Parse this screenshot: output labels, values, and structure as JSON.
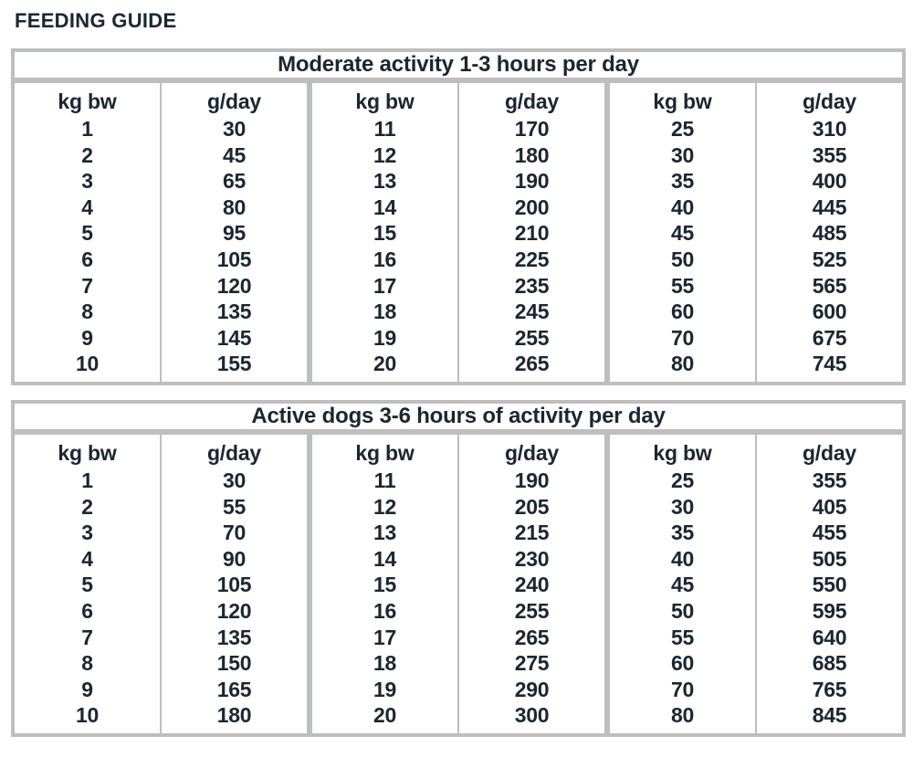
{
  "page_title": "FEEDING GUIDE",
  "colors": {
    "text": "#1c2630",
    "border": "#bdbec0"
  },
  "tables": [
    {
      "title": "Moderate activity 1-3 hours per day",
      "column_headers": {
        "weight": "kg bw",
        "amount": "g/day"
      },
      "groups": [
        {
          "rows": [
            [
              "1",
              "30"
            ],
            [
              "2",
              "45"
            ],
            [
              "3",
              "65"
            ],
            [
              "4",
              "80"
            ],
            [
              "5",
              "95"
            ],
            [
              "6",
              "105"
            ],
            [
              "7",
              "120"
            ],
            [
              "8",
              "135"
            ],
            [
              "9",
              "145"
            ],
            [
              "10",
              "155"
            ]
          ]
        },
        {
          "rows": [
            [
              "11",
              "170"
            ],
            [
              "12",
              "180"
            ],
            [
              "13",
              "190"
            ],
            [
              "14",
              "200"
            ],
            [
              "15",
              "210"
            ],
            [
              "16",
              "225"
            ],
            [
              "17",
              "235"
            ],
            [
              "18",
              "245"
            ],
            [
              "19",
              "255"
            ],
            [
              "20",
              "265"
            ]
          ]
        },
        {
          "rows": [
            [
              "25",
              "310"
            ],
            [
              "30",
              "355"
            ],
            [
              "35",
              "400"
            ],
            [
              "40",
              "445"
            ],
            [
              "45",
              "485"
            ],
            [
              "50",
              "525"
            ],
            [
              "55",
              "565"
            ],
            [
              "60",
              "600"
            ],
            [
              "70",
              "675"
            ],
            [
              "80",
              "745"
            ]
          ]
        }
      ]
    },
    {
      "title": "Active dogs 3-6 hours of activity per day",
      "column_headers": {
        "weight": "kg bw",
        "amount": "g/day"
      },
      "groups": [
        {
          "rows": [
            [
              "1",
              "30"
            ],
            [
              "2",
              "55"
            ],
            [
              "3",
              "70"
            ],
            [
              "4",
              "90"
            ],
            [
              "5",
              "105"
            ],
            [
              "6",
              "120"
            ],
            [
              "7",
              "135"
            ],
            [
              "8",
              "150"
            ],
            [
              "9",
              "165"
            ],
            [
              "10",
              "180"
            ]
          ]
        },
        {
          "rows": [
            [
              "11",
              "190"
            ],
            [
              "12",
              "205"
            ],
            [
              "13",
              "215"
            ],
            [
              "14",
              "230"
            ],
            [
              "15",
              "240"
            ],
            [
              "16",
              "255"
            ],
            [
              "17",
              "265"
            ],
            [
              "18",
              "275"
            ],
            [
              "19",
              "290"
            ],
            [
              "20",
              "300"
            ]
          ]
        },
        {
          "rows": [
            [
              "25",
              "355"
            ],
            [
              "30",
              "405"
            ],
            [
              "35",
              "455"
            ],
            [
              "40",
              "505"
            ],
            [
              "45",
              "550"
            ],
            [
              "50",
              "595"
            ],
            [
              "55",
              "640"
            ],
            [
              "60",
              "685"
            ],
            [
              "70",
              "765"
            ],
            [
              "80",
              "845"
            ]
          ]
        }
      ]
    }
  ]
}
